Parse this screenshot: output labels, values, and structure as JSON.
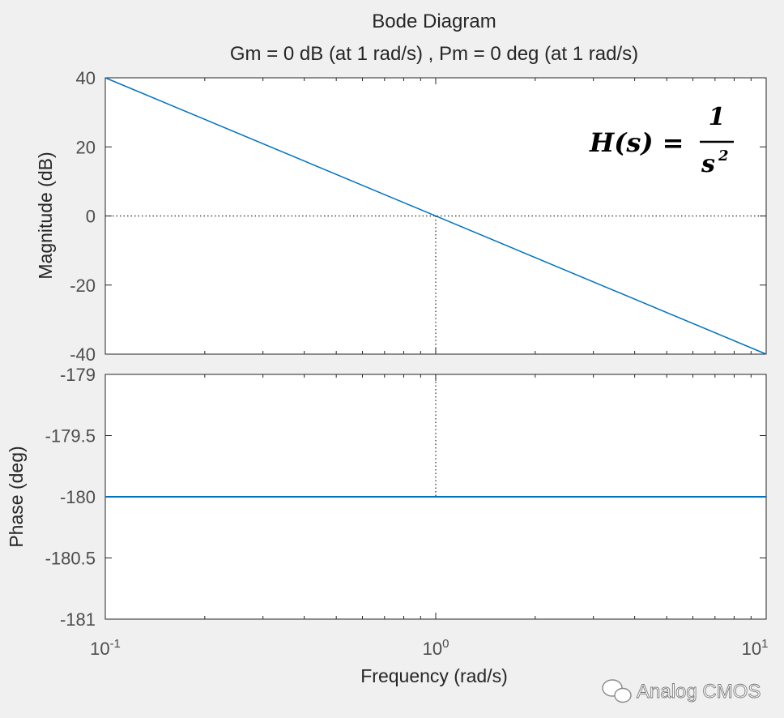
{
  "chart_data": {
    "type": "line",
    "title": "Bode Diagram",
    "subtitle": "Gm = 0 dB (at 1 rad/s) ,  Pm = 0 deg (at 1 rad/s)",
    "xlabel": "Frequency  (rad/s)",
    "xscale": "log",
    "xlim": [
      0.1,
      10
    ],
    "x_ticks": [
      {
        "value": 0.1,
        "base": "10",
        "exp": "-1"
      },
      {
        "value": 1,
        "base": "10",
        "exp": "0"
      },
      {
        "value": 10,
        "base": "10",
        "exp": "1"
      }
    ],
    "panels": [
      {
        "name": "magnitude",
        "ylabel": "Magnitude (dB)",
        "ylim": [
          -40,
          40
        ],
        "yticks": [
          "40",
          "20",
          "0",
          "-20",
          "-40"
        ],
        "ytick_values": [
          40,
          20,
          0,
          -20,
          -40
        ],
        "series": [
          {
            "name": "H(s)",
            "x": [
              0.1,
              10
            ],
            "y": [
              40,
              -40
            ],
            "color": "#0072bd"
          }
        ],
        "ref_line_y": 0
      },
      {
        "name": "phase",
        "ylabel": "Phase (deg)",
        "ylim": [
          -181,
          -179
        ],
        "yticks": [
          "-179",
          "-179.5",
          "-180",
          "-180.5",
          "-181"
        ],
        "ytick_values": [
          -179,
          -179.5,
          -180,
          -180.5,
          -181
        ],
        "series": [
          {
            "name": "H(s)",
            "x": [
              0.1,
              10
            ],
            "y": [
              -180,
              -180
            ],
            "color": "#0072bd"
          }
        ]
      }
    ],
    "crossover": {
      "x": 1,
      "magnitude_db": 0,
      "phase_deg": -180
    },
    "annotation": {
      "lhs": "H(s) = ",
      "numerator": "1",
      "denominator": "s",
      "denominator_exp": "2"
    }
  },
  "watermark": "Analog CMOS",
  "colors": {
    "background": "#f0f0f0",
    "plot_bg": "#ffffff",
    "axes": "#262626",
    "line": "#0072bd"
  }
}
